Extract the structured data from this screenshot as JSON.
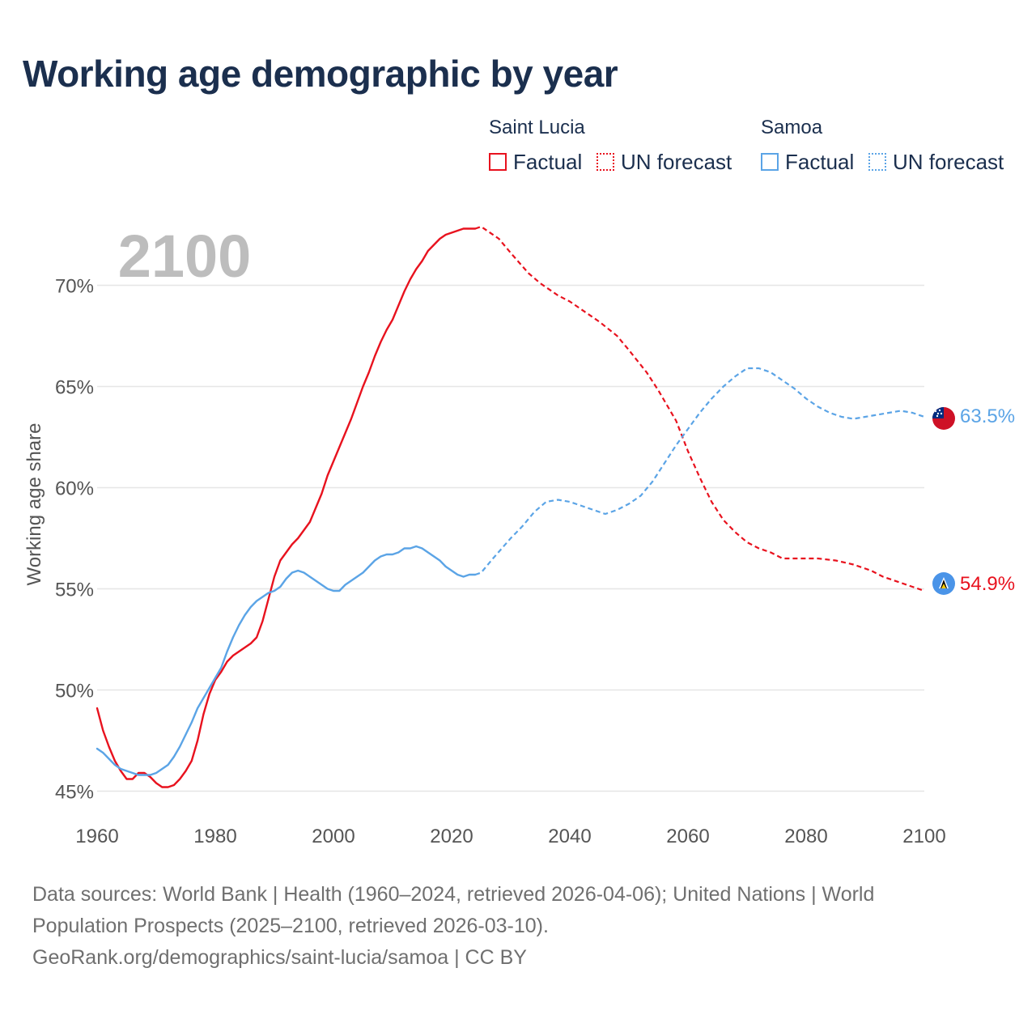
{
  "title": "Working age demographic by year",
  "legend": {
    "groups": [
      {
        "name": "Saint Lucia",
        "factual_label": "Factual",
        "forecast_label": "UN forecast",
        "color": "#e8121e"
      },
      {
        "name": "Samoa",
        "factual_label": "Factual",
        "forecast_label": "UN forecast",
        "color": "#5ba4e6"
      }
    ]
  },
  "year_watermark": "2100",
  "footer": {
    "line1": "Data sources: World Bank | Health (1960–2024, retrieved 2026-04-06); United Nations | World",
    "line2": "Population Prospects (2025–2100, retrieved 2026-03-10).",
    "line3": "GeoRank.org/demographics/saint-lucia/samoa | CC BY"
  },
  "chart_data": {
    "type": "line",
    "title": "Working age demographic by year",
    "xlabel": "",
    "ylabel": "Working age share",
    "xlim": [
      1960,
      2100
    ],
    "ylim": [
      44.5,
      72.5
    ],
    "x_ticks": [
      1960,
      1980,
      2000,
      2020,
      2040,
      2060,
      2080,
      2100
    ],
    "x_tick_labels": [
      "1960",
      "1980",
      "2000",
      "2020",
      "2040",
      "2060",
      "2080",
      "2100"
    ],
    "y_ticks": [
      45,
      50,
      55,
      60,
      65,
      70
    ],
    "y_tick_labels": [
      "45%",
      "50%",
      "55%",
      "60%",
      "65%",
      "70%"
    ],
    "grid": true,
    "factual_range": [
      1960,
      2024
    ],
    "forecast_range": [
      2024,
      2100
    ],
    "series": [
      {
        "name": "Saint Lucia",
        "color": "#e8121e",
        "end_label": "54.9%",
        "flag": "saint-lucia-flag",
        "points": [
          [
            1960,
            49.1
          ],
          [
            1961,
            48.0
          ],
          [
            1962,
            47.2
          ],
          [
            1963,
            46.5
          ],
          [
            1964,
            46.0
          ],
          [
            1965,
            45.6
          ],
          [
            1966,
            45.6
          ],
          [
            1967,
            45.9
          ],
          [
            1968,
            45.9
          ],
          [
            1969,
            45.7
          ],
          [
            1970,
            45.4
          ],
          [
            1971,
            45.2
          ],
          [
            1972,
            45.2
          ],
          [
            1973,
            45.3
          ],
          [
            1974,
            45.6
          ],
          [
            1975,
            46.0
          ],
          [
            1976,
            46.5
          ],
          [
            1977,
            47.5
          ],
          [
            1978,
            48.8
          ],
          [
            1979,
            49.8
          ],
          [
            1980,
            50.5
          ],
          [
            1981,
            50.9
          ],
          [
            1982,
            51.4
          ],
          [
            1983,
            51.7
          ],
          [
            1984,
            51.9
          ],
          [
            1985,
            52.1
          ],
          [
            1986,
            52.3
          ],
          [
            1987,
            52.6
          ],
          [
            1988,
            53.4
          ],
          [
            1989,
            54.5
          ],
          [
            1990,
            55.6
          ],
          [
            1991,
            56.4
          ],
          [
            1992,
            56.8
          ],
          [
            1993,
            57.2
          ],
          [
            1994,
            57.5
          ],
          [
            1995,
            57.9
          ],
          [
            1996,
            58.3
          ],
          [
            1997,
            59.0
          ],
          [
            1998,
            59.7
          ],
          [
            1999,
            60.6
          ],
          [
            2000,
            61.3
          ],
          [
            2001,
            62.0
          ],
          [
            2002,
            62.7
          ],
          [
            2003,
            63.4
          ],
          [
            2004,
            64.2
          ],
          [
            2005,
            65.0
          ],
          [
            2006,
            65.7
          ],
          [
            2007,
            66.5
          ],
          [
            2008,
            67.2
          ],
          [
            2009,
            67.8
          ],
          [
            2010,
            68.3
          ],
          [
            2011,
            69.0
          ],
          [
            2012,
            69.7
          ],
          [
            2013,
            70.3
          ],
          [
            2014,
            70.8
          ],
          [
            2015,
            71.2
          ],
          [
            2016,
            71.7
          ],
          [
            2017,
            72.0
          ],
          [
            2018,
            72.3
          ],
          [
            2019,
            72.5
          ],
          [
            2020,
            72.6
          ],
          [
            2021,
            72.7
          ],
          [
            2022,
            72.8
          ],
          [
            2023,
            72.8
          ],
          [
            2024,
            72.8
          ],
          [
            2025,
            72.9
          ],
          [
            2028,
            72.3
          ],
          [
            2030,
            71.6
          ],
          [
            2033,
            70.6
          ],
          [
            2035,
            70.1
          ],
          [
            2038,
            69.5
          ],
          [
            2040,
            69.2
          ],
          [
            2043,
            68.6
          ],
          [
            2045,
            68.2
          ],
          [
            2048,
            67.5
          ],
          [
            2050,
            66.8
          ],
          [
            2053,
            65.7
          ],
          [
            2055,
            64.8
          ],
          [
            2058,
            63.3
          ],
          [
            2060,
            61.8
          ],
          [
            2062,
            60.5
          ],
          [
            2064,
            59.3
          ],
          [
            2066,
            58.4
          ],
          [
            2068,
            57.8
          ],
          [
            2070,
            57.3
          ],
          [
            2072,
            57.0
          ],
          [
            2074,
            56.8
          ],
          [
            2076,
            56.5
          ],
          [
            2080,
            56.5
          ],
          [
            2082,
            56.5
          ],
          [
            2085,
            56.4
          ],
          [
            2088,
            56.2
          ],
          [
            2091,
            55.9
          ],
          [
            2093,
            55.6
          ],
          [
            2096,
            55.3
          ],
          [
            2098,
            55.1
          ],
          [
            2100,
            54.9
          ]
        ]
      },
      {
        "name": "Samoa",
        "color": "#5ba4e6",
        "end_label": "63.5%",
        "flag": "samoa-flag",
        "points": [
          [
            1960,
            47.1
          ],
          [
            1961,
            46.9
          ],
          [
            1962,
            46.6
          ],
          [
            1963,
            46.3
          ],
          [
            1964,
            46.1
          ],
          [
            1965,
            46.0
          ],
          [
            1966,
            45.9
          ],
          [
            1967,
            45.8
          ],
          [
            1968,
            45.8
          ],
          [
            1969,
            45.8
          ],
          [
            1970,
            45.9
          ],
          [
            1971,
            46.1
          ],
          [
            1972,
            46.3
          ],
          [
            1973,
            46.7
          ],
          [
            1974,
            47.2
          ],
          [
            1975,
            47.8
          ],
          [
            1976,
            48.4
          ],
          [
            1977,
            49.1
          ],
          [
            1978,
            49.6
          ],
          [
            1979,
            50.1
          ],
          [
            1980,
            50.6
          ],
          [
            1981,
            51.1
          ],
          [
            1982,
            51.9
          ],
          [
            1983,
            52.6
          ],
          [
            1984,
            53.2
          ],
          [
            1985,
            53.7
          ],
          [
            1986,
            54.1
          ],
          [
            1987,
            54.4
          ],
          [
            1988,
            54.6
          ],
          [
            1989,
            54.8
          ],
          [
            1990,
            54.9
          ],
          [
            1991,
            55.1
          ],
          [
            1992,
            55.5
          ],
          [
            1993,
            55.8
          ],
          [
            1994,
            55.9
          ],
          [
            1995,
            55.8
          ],
          [
            1996,
            55.6
          ],
          [
            1997,
            55.4
          ],
          [
            1998,
            55.2
          ],
          [
            1999,
            55.0
          ],
          [
            2000,
            54.9
          ],
          [
            2001,
            54.9
          ],
          [
            2002,
            55.2
          ],
          [
            2003,
            55.4
          ],
          [
            2004,
            55.6
          ],
          [
            2005,
            55.8
          ],
          [
            2006,
            56.1
          ],
          [
            2007,
            56.4
          ],
          [
            2008,
            56.6
          ],
          [
            2009,
            56.7
          ],
          [
            2010,
            56.7
          ],
          [
            2011,
            56.8
          ],
          [
            2012,
            57.0
          ],
          [
            2013,
            57.0
          ],
          [
            2014,
            57.1
          ],
          [
            2015,
            57.0
          ],
          [
            2016,
            56.8
          ],
          [
            2017,
            56.6
          ],
          [
            2018,
            56.4
          ],
          [
            2019,
            56.1
          ],
          [
            2020,
            55.9
          ],
          [
            2021,
            55.7
          ],
          [
            2022,
            55.6
          ],
          [
            2023,
            55.7
          ],
          [
            2024,
            55.7
          ],
          [
            2025,
            55.8
          ],
          [
            2027,
            56.5
          ],
          [
            2030,
            57.5
          ],
          [
            2032,
            58.1
          ],
          [
            2034,
            58.8
          ],
          [
            2036,
            59.3
          ],
          [
            2038,
            59.4
          ],
          [
            2040,
            59.3
          ],
          [
            2042,
            59.1
          ],
          [
            2044,
            58.9
          ],
          [
            2046,
            58.7
          ],
          [
            2048,
            58.9
          ],
          [
            2050,
            59.2
          ],
          [
            2052,
            59.6
          ],
          [
            2054,
            60.3
          ],
          [
            2056,
            61.2
          ],
          [
            2058,
            62.1
          ],
          [
            2060,
            62.9
          ],
          [
            2062,
            63.7
          ],
          [
            2064,
            64.4
          ],
          [
            2066,
            65.0
          ],
          [
            2068,
            65.5
          ],
          [
            2070,
            65.9
          ],
          [
            2072,
            65.9
          ],
          [
            2074,
            65.7
          ],
          [
            2076,
            65.3
          ],
          [
            2078,
            64.9
          ],
          [
            2080,
            64.4
          ],
          [
            2082,
            64.0
          ],
          [
            2084,
            63.7
          ],
          [
            2086,
            63.5
          ],
          [
            2088,
            63.4
          ],
          [
            2090,
            63.5
          ],
          [
            2092,
            63.6
          ],
          [
            2094,
            63.7
          ],
          [
            2096,
            63.8
          ],
          [
            2098,
            63.7
          ],
          [
            2100,
            63.5
          ]
        ]
      }
    ]
  }
}
